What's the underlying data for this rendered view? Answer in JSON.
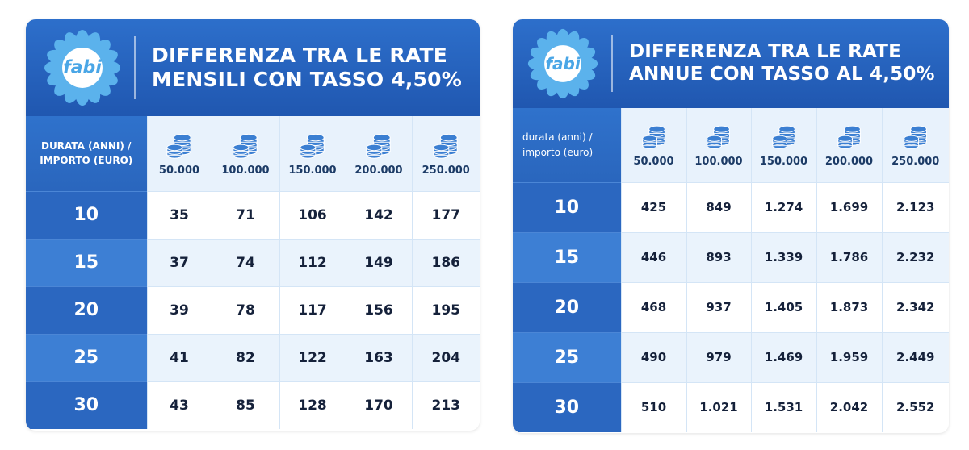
{
  "left": {
    "logo_text": "fabi",
    "title_line1": "DIFFERENZA TRA LE RATE",
    "title_line2": "MENSILI CON TASSO 4,50%",
    "corner_line1": "DURATA (ANNI) /",
    "corner_line2": "IMPORTO (EURO)",
    "amounts": [
      "50.000",
      "100.000",
      "150.000",
      "200.000",
      "250.000"
    ],
    "rows": [
      {
        "years": "10",
        "values": [
          "35",
          "71",
          "106",
          "142",
          "177"
        ]
      },
      {
        "years": "15",
        "values": [
          "37",
          "74",
          "112",
          "149",
          "186"
        ]
      },
      {
        "years": "20",
        "values": [
          "39",
          "78",
          "117",
          "156",
          "195"
        ]
      },
      {
        "years": "25",
        "values": [
          "41",
          "82",
          "122",
          "163",
          "204"
        ]
      },
      {
        "years": "30",
        "values": [
          "43",
          "85",
          "128",
          "170",
          "213"
        ]
      }
    ]
  },
  "right": {
    "logo_text": "fabi",
    "title_line1": "DIFFERENZA TRA LE RATE",
    "title_line2": "ANNUE CON TASSO AL 4,50%",
    "corner_line1": "durata (anni) /",
    "corner_line2": "importo (euro)",
    "amounts": [
      "50.000",
      "100.000",
      "150.000",
      "200.000",
      "250.000"
    ],
    "rows": [
      {
        "years": "10",
        "values": [
          "425",
          "849",
          "1.274",
          "1.699",
          "2.123"
        ]
      },
      {
        "years": "15",
        "values": [
          "446",
          "893",
          "1.339",
          "1.786",
          "2.232"
        ]
      },
      {
        "years": "20",
        "values": [
          "468",
          "937",
          "1.405",
          "1.873",
          "2.342"
        ]
      },
      {
        "years": "25",
        "values": [
          "490",
          "979",
          "1.469",
          "1.959",
          "2.449"
        ]
      },
      {
        "years": "30",
        "values": [
          "510",
          "1.021",
          "1.531",
          "2.042",
          "2.552"
        ]
      }
    ]
  },
  "colors": {
    "header_blue": "#2563be",
    "year_dark": "#2b67c0",
    "year_light": "#3d7fd4",
    "row_light": "#eaf3fc",
    "logo_petal": "#5bb2ec",
    "logo_center": "#ffffff"
  },
  "icons": {
    "logo": "daisy-logo-icon",
    "amount": "coin-stack-icon"
  }
}
